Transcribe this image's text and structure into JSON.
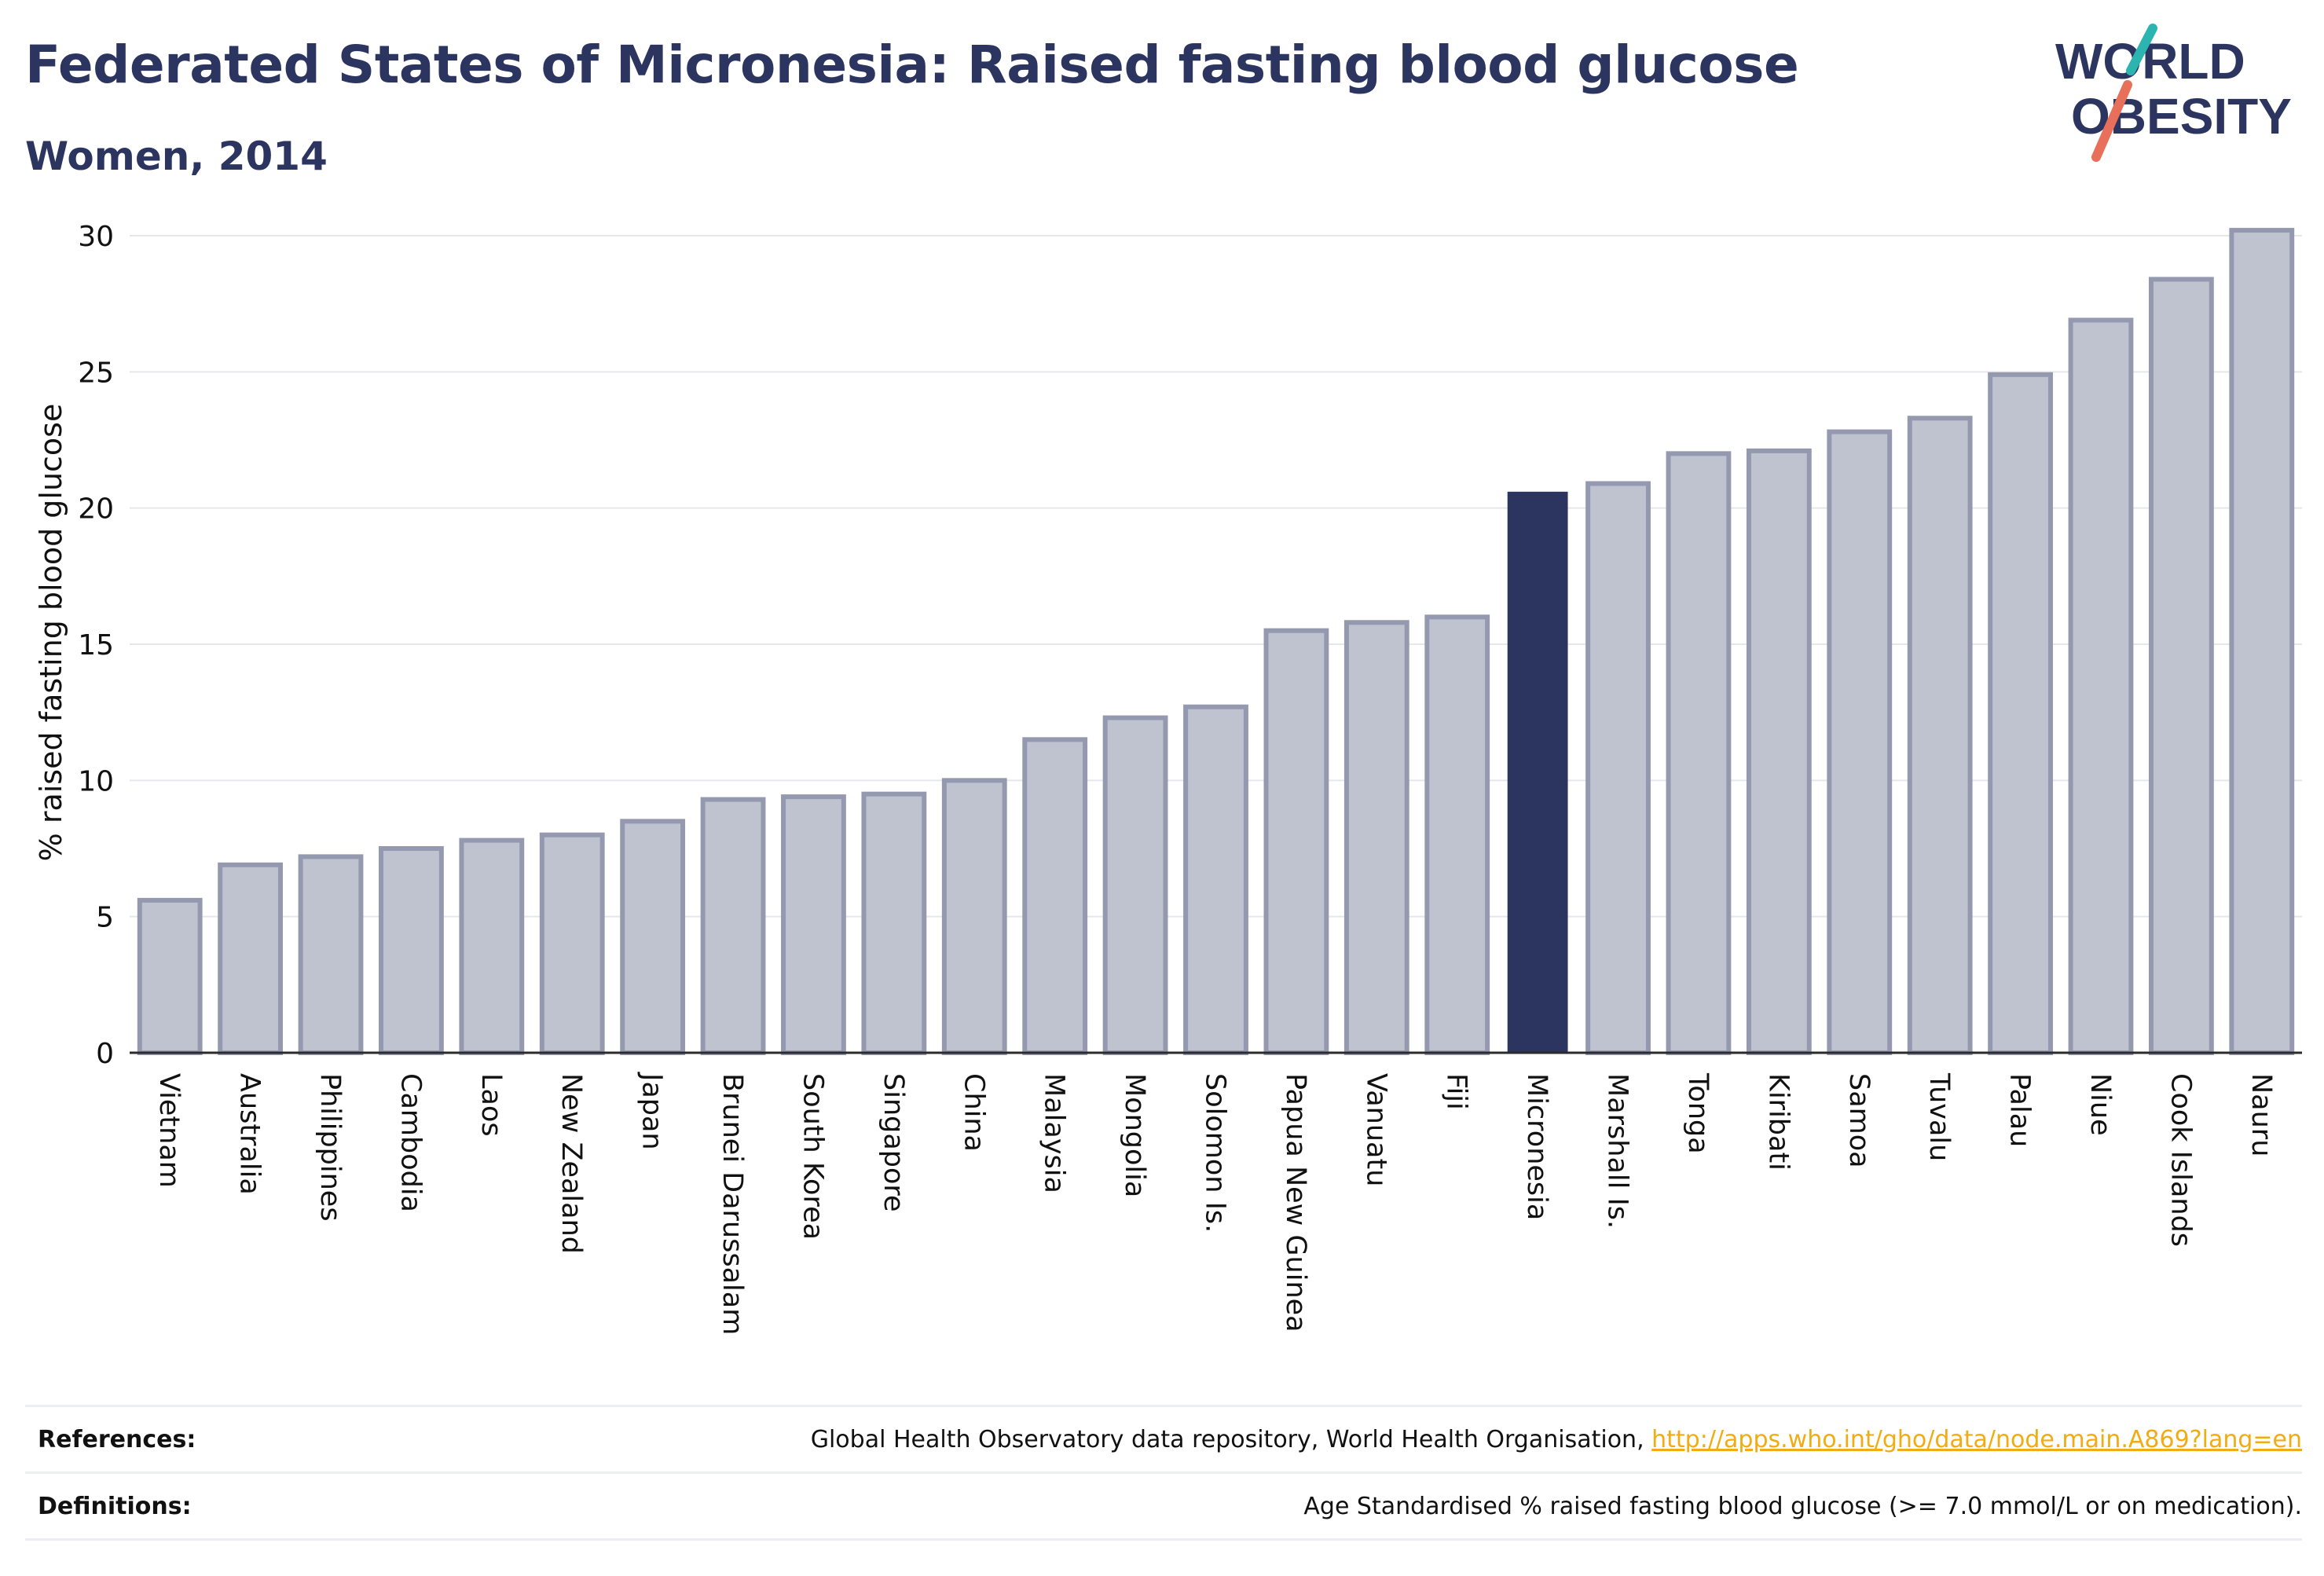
{
  "header": {
    "title": "Federated States of Micronesia: Raised fasting blood glucose",
    "subtitle": "Women, 2014",
    "logo_line1": "WORLD",
    "logo_line2": "OBESITY"
  },
  "colors": {
    "primary": "#2b3560",
    "bar_fill": "#bfc2cf",
    "bar_stroke": "#9499b0",
    "highlight": "#2b3560",
    "logo_teal": "#2cb5b0",
    "logo_coral": "#e8705a",
    "link": "#f0ac12"
  },
  "chart_data": {
    "type": "bar",
    "ylabel": "% raised fasting blood glucose",
    "ylim": [
      0,
      30
    ],
    "yticks": [
      0,
      5,
      10,
      15,
      20,
      25,
      30
    ],
    "grid": true,
    "highlight": "Micronesia",
    "categories": [
      "Vietnam",
      "Australia",
      "Philippines",
      "Cambodia",
      "Laos",
      "New Zealand",
      "Japan",
      "Brunei Darussalam",
      "South Korea",
      "Singapore",
      "China",
      "Malaysia",
      "Mongolia",
      "Solomon Is.",
      "Papua New Guinea",
      "Vanuatu",
      "Fiji",
      "Micronesia",
      "Marshall Is.",
      "Tonga",
      "Kiribati",
      "Samoa",
      "Tuvalu",
      "Palau",
      "Niue",
      "Cook Islands",
      "Nauru"
    ],
    "values": [
      5.6,
      6.9,
      7.2,
      7.5,
      7.8,
      8.0,
      8.5,
      9.3,
      9.4,
      9.5,
      10.0,
      11.5,
      12.3,
      12.7,
      15.5,
      15.8,
      16.0,
      20.6,
      20.9,
      22.0,
      22.1,
      22.8,
      23.3,
      24.9,
      26.9,
      28.4,
      30.2
    ]
  },
  "footer": {
    "references_label": "References:",
    "references_text": "Global Health Observatory data repository, World Health Organisation, ",
    "references_link": "http://apps.who.int/gho/data/node.main.A869?lang=en",
    "definitions_label": "Definitions:",
    "definitions_text": "Age Standardised % raised fasting blood glucose (>= 7.0 mmol/L or on medication)."
  }
}
